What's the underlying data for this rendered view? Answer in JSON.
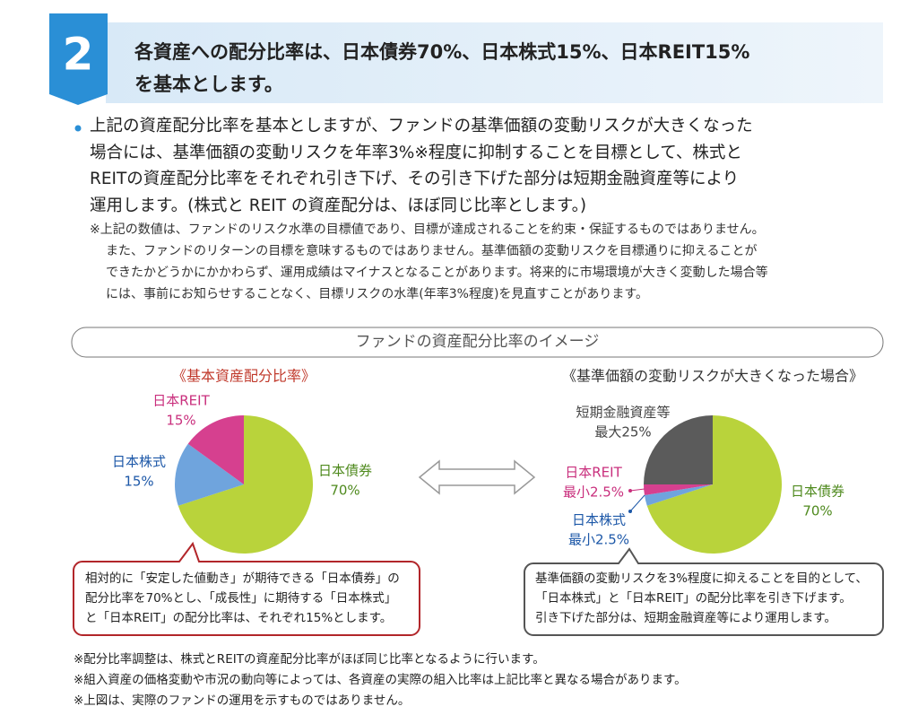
{
  "header": {
    "number": "2",
    "title": [
      "各資産への配分比率は、日本債券70%、日本株式15%、日本REIT15%",
      "を基本とします。"
    ]
  },
  "body": [
    "上記の資産配分比率を基本としますが、ファンドの基準価額の変動リスクが大きくなった",
    "場合には、基準価額の変動リスクを年率3%※程度に抑制することを目標として、株式と",
    "REITの資産配分比率をそれぞれ引き下げ、その引き下げた部分は短期金融資産等により",
    "運用します。(株式と REIT の資産配分は、ほぼ同じ比率とします。)"
  ],
  "note": [
    "※上記の数値は、ファンドのリスク水準の目標値であり、目標が達成されることを約束・保証するものではありません。",
    "また、ファンドのリターンの目標を意味するものではありません。基準価額の変動リスクを目標通りに抑えることが",
    "できたかどうかにかかわらず、運用成績はマイナスとなることがあります。将来的に市場環境が大きく変動した場合等",
    "には、事前にお知らせすることなく、目標リスクの水準(年率3%程度)を見直すことがあります。"
  ],
  "section_title": "ファンドの資産配分比率のイメージ",
  "chart_data": [
    {
      "type": "pie",
      "title": "《基本資産配分比率》",
      "categories": [
        "日本債券",
        "日本株式",
        "日本REIT"
      ],
      "values": [
        70,
        15,
        15
      ],
      "value_labels": [
        "70%",
        "15%",
        "15%"
      ],
      "colors": [
        "#b9d33b",
        "#6fa4dd",
        "#d6408f"
      ],
      "label_colors": [
        "#4f8a1e",
        "#1d58a8",
        "#c92f7d"
      ],
      "callout": [
        "相対的に「安定した値動き」が期待できる「日本債券」の",
        "配分比率を70%とし、「成長性」に期待する「日本株式」",
        "と「日本REIT」の配分比率は、それぞれ15%とします。"
      ]
    },
    {
      "type": "pie",
      "title": "《基準価額の変動リスクが大きくなった場合》",
      "categories": [
        "日本債券",
        "日本株式",
        "日本REIT",
        "短期金融資産等"
      ],
      "values": [
        70,
        2.5,
        2.5,
        25
      ],
      "value_labels": [
        "70%",
        "最小2.5%",
        "最小2.5%",
        "最大25%"
      ],
      "colors": [
        "#b9d33b",
        "#6fa4dd",
        "#d6408f",
        "#5b5b5b"
      ],
      "label_colors": [
        "#4f8a1e",
        "#1d58a8",
        "#c92f7d",
        "#444444"
      ],
      "callout": [
        "基準価額の変動リスクを3%程度に抑えることを目的として、",
        "「日本株式」と「日本REIT」の配分比率を引き下げます。",
        "引き下げた部分は、短期金融資産等により運用します。"
      ]
    }
  ],
  "footnotes": [
    "※配分比率調整は、株式とREITの資産配分比率がほぼ同じ比率となるように行います。",
    "※組入資産の価格変動や市況の動向等によっては、各資産の実際の組入比率は上記比率と異なる場合があります。",
    "※上図は、実際のファンドの運用を示すものではありません。"
  ]
}
